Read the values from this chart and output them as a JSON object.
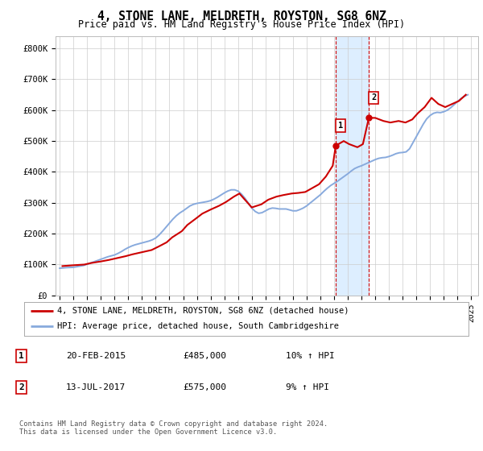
{
  "title": "4, STONE LANE, MELDRETH, ROYSTON, SG8 6NZ",
  "subtitle": "Price paid vs. HM Land Registry's House Price Index (HPI)",
  "ylabel_ticks": [
    "£0",
    "£100K",
    "£200K",
    "£300K",
    "£400K",
    "£500K",
    "£600K",
    "£700K",
    "£800K"
  ],
  "ytick_values": [
    0,
    100000,
    200000,
    300000,
    400000,
    500000,
    600000,
    700000,
    800000
  ],
  "ylim": [
    0,
    840000
  ],
  "xlim_start": 1994.7,
  "xlim_end": 2025.5,
  "xtick_years": [
    1995,
    1996,
    1997,
    1998,
    1999,
    2000,
    2001,
    2002,
    2003,
    2004,
    2005,
    2006,
    2007,
    2008,
    2009,
    2010,
    2011,
    2012,
    2013,
    2014,
    2015,
    2016,
    2017,
    2018,
    2019,
    2020,
    2021,
    2022,
    2023,
    2024,
    2025
  ],
  "sale1_x": 2015.12,
  "sale1_y": 485000,
  "sale1_label": "1",
  "sale2_x": 2017.53,
  "sale2_y": 575000,
  "sale2_label": "2",
  "vspan_x1": 2015.12,
  "vspan_x2": 2017.53,
  "property_color": "#cc0000",
  "hpi_color": "#88aadd",
  "vspan_color": "#ddeeff",
  "vline_color": "#cc0000",
  "legend_property_label": "4, STONE LANE, MELDRETH, ROYSTON, SG8 6NZ (detached house)",
  "legend_hpi_label": "HPI: Average price, detached house, South Cambridgeshire",
  "table_row1": [
    "1",
    "20-FEB-2015",
    "£485,000",
    "10% ↑ HPI"
  ],
  "table_row2": [
    "2",
    "13-JUL-2017",
    "£575,000",
    "9% ↑ HPI"
  ],
  "footnote": "Contains HM Land Registry data © Crown copyright and database right 2024.\nThis data is licensed under the Open Government Licence v3.0.",
  "background_color": "#ffffff",
  "grid_color": "#cccccc",
  "hpi_data_x": [
    1995.0,
    1995.25,
    1995.5,
    1995.75,
    1996.0,
    1996.25,
    1996.5,
    1996.75,
    1997.0,
    1997.25,
    1997.5,
    1997.75,
    1998.0,
    1998.25,
    1998.5,
    1998.75,
    1999.0,
    1999.25,
    1999.5,
    1999.75,
    2000.0,
    2000.25,
    2000.5,
    2000.75,
    2001.0,
    2001.25,
    2001.5,
    2001.75,
    2002.0,
    2002.25,
    2002.5,
    2002.75,
    2003.0,
    2003.25,
    2003.5,
    2003.75,
    2004.0,
    2004.25,
    2004.5,
    2004.75,
    2005.0,
    2005.25,
    2005.5,
    2005.75,
    2006.0,
    2006.25,
    2006.5,
    2006.75,
    2007.0,
    2007.25,
    2007.5,
    2007.75,
    2008.0,
    2008.25,
    2008.5,
    2008.75,
    2009.0,
    2009.25,
    2009.5,
    2009.75,
    2010.0,
    2010.25,
    2010.5,
    2010.75,
    2011.0,
    2011.25,
    2011.5,
    2011.75,
    2012.0,
    2012.25,
    2012.5,
    2012.75,
    2013.0,
    2013.25,
    2013.5,
    2013.75,
    2014.0,
    2014.25,
    2014.5,
    2014.75,
    2015.0,
    2015.25,
    2015.5,
    2015.75,
    2016.0,
    2016.25,
    2016.5,
    2016.75,
    2017.0,
    2017.25,
    2017.5,
    2017.75,
    2018.0,
    2018.25,
    2018.5,
    2018.75,
    2019.0,
    2019.25,
    2019.5,
    2019.75,
    2020.0,
    2020.25,
    2020.5,
    2020.75,
    2021.0,
    2021.25,
    2021.5,
    2021.75,
    2022.0,
    2022.25,
    2022.5,
    2022.75,
    2023.0,
    2023.25,
    2023.5,
    2023.75,
    2024.0,
    2024.25,
    2024.5,
    2024.75
  ],
  "hpi_data_y": [
    88000,
    89000,
    90000,
    90500,
    91000,
    93000,
    95000,
    97000,
    101000,
    105000,
    109000,
    113000,
    117000,
    121000,
    125000,
    128000,
    131000,
    136000,
    142000,
    149000,
    155000,
    160000,
    164000,
    167000,
    170000,
    173000,
    176000,
    180000,
    186000,
    196000,
    208000,
    221000,
    234000,
    247000,
    258000,
    267000,
    274000,
    282000,
    290000,
    295000,
    298000,
    300000,
    302000,
    304000,
    307000,
    312000,
    318000,
    325000,
    332000,
    338000,
    342000,
    342000,
    338000,
    328000,
    315000,
    299000,
    283000,
    272000,
    266000,
    268000,
    274000,
    280000,
    283000,
    282000,
    280000,
    280000,
    280000,
    277000,
    274000,
    274000,
    278000,
    283000,
    290000,
    299000,
    308000,
    317000,
    326000,
    337000,
    347000,
    356000,
    363000,
    370000,
    378000,
    386000,
    394000,
    403000,
    411000,
    416000,
    420000,
    425000,
    430000,
    435000,
    440000,
    444000,
    446000,
    447000,
    450000,
    454000,
    459000,
    462000,
    463000,
    465000,
    475000,
    495000,
    515000,
    535000,
    555000,
    572000,
    583000,
    590000,
    593000,
    592000,
    595000,
    600000,
    608000,
    618000,
    628000,
    638000,
    645000,
    650000
  ],
  "property_data_x": [
    1995.2,
    1996.1,
    1996.8,
    1997.3,
    1998.0,
    1998.6,
    1999.1,
    1999.8,
    2000.3,
    2001.0,
    2001.7,
    2002.2,
    2002.8,
    2003.2,
    2003.9,
    2004.3,
    2004.9,
    2005.4,
    2006.0,
    2006.6,
    2007.1,
    2007.7,
    2008.1,
    2009.0,
    2009.7,
    2010.2,
    2010.8,
    2011.3,
    2011.9,
    2012.4,
    2012.9,
    2013.3,
    2013.9,
    2014.4,
    2014.9,
    2015.12,
    2015.7,
    2016.1,
    2016.7,
    2017.1,
    2017.53,
    2018.0,
    2018.6,
    2019.1,
    2019.7,
    2020.2,
    2020.7,
    2021.1,
    2021.6,
    2022.1,
    2022.6,
    2023.1,
    2023.6,
    2024.1,
    2024.6
  ],
  "property_data_y": [
    95000,
    98000,
    100000,
    105000,
    110000,
    115000,
    120000,
    127000,
    133000,
    140000,
    147000,
    158000,
    172000,
    188000,
    208000,
    228000,
    248000,
    265000,
    278000,
    290000,
    302000,
    320000,
    330000,
    285000,
    295000,
    310000,
    320000,
    325000,
    330000,
    332000,
    335000,
    345000,
    360000,
    385000,
    420000,
    485000,
    500000,
    490000,
    480000,
    490000,
    575000,
    575000,
    565000,
    560000,
    565000,
    560000,
    570000,
    590000,
    610000,
    640000,
    620000,
    610000,
    620000,
    630000,
    650000
  ]
}
